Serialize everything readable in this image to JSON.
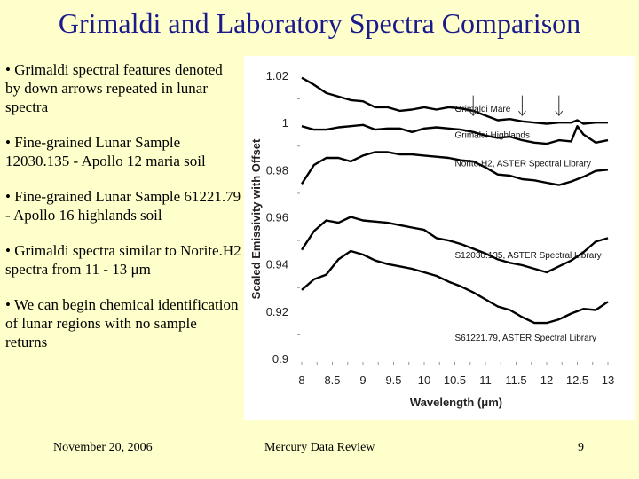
{
  "slide": {
    "title": "Grimaldi and Laboratory Spectra Comparison",
    "bullets": [
      "• Grimaldi spectral features denoted by down arrows repeated in lunar spectra",
      "• Fine-grained Lunar Sample 12030.135 - Apollo 12 maria soil",
      "• Fine-grained Lunar Sample 61221.79 - Apollo 16 highlands soil",
      "• Grimaldi spectra similar to Norite.H2 spectra from 11 - 13 μm",
      "• We can begin chemical identification of lunar regions with no sample returns"
    ],
    "footer": {
      "date": "November 20, 2006",
      "center": "Mercury Data Review",
      "page": "9"
    }
  },
  "chart_data": {
    "type": "line",
    "title": "",
    "xlabel": "Wavelength (μm)",
    "ylabel": "Scaled Emissivity with Offset",
    "xlim": [
      8,
      13
    ],
    "ylim": [
      0.9,
      1.02
    ],
    "x_ticks": [
      8,
      8.5,
      9,
      9.5,
      10,
      10.5,
      11,
      11.5,
      12,
      12.5,
      13
    ],
    "x_tick_labels": [
      "8",
      "8.5",
      "9",
      "9.5",
      "10",
      "10.5",
      "11",
      "11.5",
      "12",
      "12.5",
      "13"
    ],
    "y_ticks": [
      0.9,
      0.92,
      0.94,
      0.96,
      0.98,
      1,
      1.02
    ],
    "y_tick_labels": [
      "0.9",
      "0.92",
      "0.94",
      "0.96",
      "0.98",
      "1",
      "1.02"
    ],
    "grid": false,
    "colors": {
      "line": "#000000",
      "panel": "#ffffff"
    },
    "series": [
      {
        "name": "Grimaldi Mare",
        "label_at": [
          10.5,
          1.0045
        ],
        "x": [
          8,
          8.2,
          8.4,
          8.6,
          8.8,
          9.0,
          9.2,
          9.4,
          9.6,
          9.8,
          10.0,
          10.2,
          10.4,
          10.6,
          10.8,
          11.0,
          11.2,
          11.4,
          11.6,
          11.8,
          12.0,
          12.2,
          12.4,
          12.5,
          12.6,
          12.8,
          13.0
        ],
        "values": [
          1.019,
          1.016,
          1.0125,
          1.011,
          1.0095,
          1.009,
          1.0065,
          1.0065,
          1.005,
          1.0055,
          1.0065,
          1.0055,
          1.0065,
          1.006,
          1.005,
          1.003,
          1.001,
          1.0015,
          1.0005,
          1.0,
          0.9995,
          1.0,
          1.0,
          1.001,
          0.9995,
          1.0,
          1.0
        ]
      },
      {
        "name": "Grimaldi Highlands",
        "label_at": [
          10.5,
          0.9935
        ],
        "x": [
          8,
          8.2,
          8.4,
          8.6,
          8.8,
          9.0,
          9.2,
          9.4,
          9.6,
          9.8,
          10.0,
          10.2,
          10.4,
          10.6,
          10.8,
          11.0,
          11.2,
          11.4,
          11.6,
          11.8,
          12.0,
          12.2,
          12.4,
          12.5,
          12.6,
          12.8,
          13.0
        ],
        "values": [
          0.9985,
          0.997,
          0.997,
          0.998,
          0.9985,
          0.999,
          0.997,
          0.9975,
          0.9975,
          0.996,
          0.9975,
          0.998,
          0.9975,
          0.997,
          0.996,
          0.9945,
          0.9935,
          0.994,
          0.9925,
          0.9915,
          0.991,
          0.9925,
          0.992,
          0.9985,
          0.995,
          0.9915,
          0.9925
        ]
      },
      {
        "name": "Norite.H2, ASTER Spectral Library",
        "label_at": [
          10.5,
          0.9815
        ],
        "x": [
          8,
          8.2,
          8.4,
          8.6,
          8.8,
          9.0,
          9.2,
          9.4,
          9.6,
          9.8,
          10.0,
          10.2,
          10.4,
          10.6,
          10.8,
          11.0,
          11.2,
          11.4,
          11.6,
          11.8,
          12.0,
          12.2,
          12.4,
          12.6,
          12.8,
          13.0
        ],
        "values": [
          0.974,
          0.982,
          0.985,
          0.985,
          0.9835,
          0.986,
          0.9875,
          0.9875,
          0.9865,
          0.9865,
          0.986,
          0.9855,
          0.985,
          0.984,
          0.9835,
          0.981,
          0.978,
          0.9775,
          0.976,
          0.9755,
          0.9745,
          0.9735,
          0.975,
          0.977,
          0.9795,
          0.98
        ]
      },
      {
        "name": "S12030.135, ASTER Spectral Library",
        "label_at": [
          10.5,
          0.9425
        ],
        "x": [
          8,
          8.2,
          8.4,
          8.6,
          8.8,
          9.0,
          9.2,
          9.4,
          9.6,
          9.8,
          10.0,
          10.2,
          10.4,
          10.6,
          10.8,
          11.0,
          11.2,
          11.4,
          11.6,
          11.8,
          12.0,
          12.2,
          12.4,
          12.6,
          12.8,
          13.0
        ],
        "values": [
          0.946,
          0.954,
          0.9585,
          0.9575,
          0.96,
          0.9585,
          0.958,
          0.9575,
          0.9565,
          0.9555,
          0.9545,
          0.951,
          0.95,
          0.9485,
          0.9465,
          0.9445,
          0.942,
          0.9405,
          0.9395,
          0.938,
          0.9365,
          0.939,
          0.9415,
          0.945,
          0.9495,
          0.951
        ]
      },
      {
        "name": "S61221.79, ASTER Spectral Library",
        "label_at": [
          10.5,
          0.9075
        ],
        "x": [
          8,
          8.2,
          8.4,
          8.6,
          8.8,
          9.0,
          9.2,
          9.4,
          9.6,
          9.8,
          10.0,
          10.2,
          10.4,
          10.6,
          10.8,
          11.0,
          11.2,
          11.4,
          11.6,
          11.8,
          12.0,
          12.2,
          12.4,
          12.6,
          12.8,
          13.0
        ],
        "values": [
          0.929,
          0.9335,
          0.9355,
          0.942,
          0.9455,
          0.944,
          0.9415,
          0.94,
          0.939,
          0.938,
          0.9365,
          0.935,
          0.9325,
          0.9305,
          0.928,
          0.925,
          0.922,
          0.9205,
          0.9175,
          0.915,
          0.915,
          0.9165,
          0.919,
          0.921,
          0.9205,
          0.924
        ]
      }
    ],
    "annotations": [
      {
        "type": "down-arrow",
        "x": 10.8
      },
      {
        "type": "down-arrow",
        "x": 11.6
      },
      {
        "type": "down-arrow",
        "x": 12.2
      }
    ]
  }
}
